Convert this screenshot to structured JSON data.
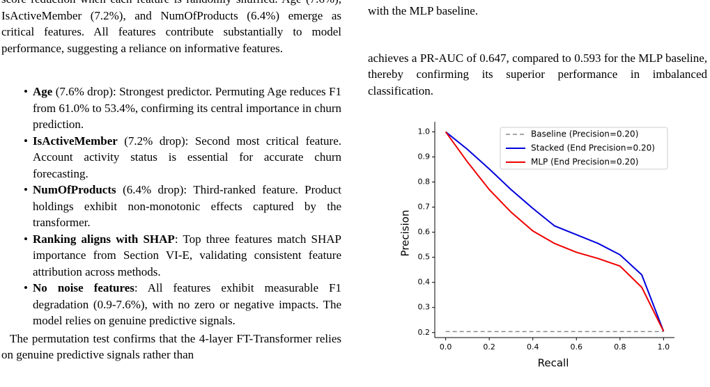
{
  "left_column": {
    "intro": "score reduction when each feature is randomly shuffled. Age (7.6%), IsActiveMember (7.2%), and NumOfProducts (6.4%) emerge as critical features. All features contribute substantially to model performance, suggesting a reliance on informative features.",
    "bullets": [
      {
        "term": "Age",
        "text": "(7.6% drop): Strongest predictor. Permuting Age reduces F1 from 61.0% to 53.4%, confirming its central importance in churn prediction."
      },
      {
        "term": "IsActiveMember",
        "text": "(7.2% drop): Second most critical feature. Account activity status is essential for accurate churn forecasting."
      },
      {
        "term": "NumOfProducts",
        "text": "(6.4% drop): Third-ranked feature. Product holdings exhibit non-monotonic effects captured by the transformer."
      },
      {
        "term": "Ranking aligns with SHAP",
        "text": ": Top three features match SHAP importance from Section VI-E, validating consistent feature attribution across methods."
      },
      {
        "term": "No noise features",
        "text": ": All features exhibit measurable F1 degradation (0.9-7.6%), with no zero or negative impacts. The model relies on genuine predictive signals."
      }
    ],
    "closing": "The permutation test confirms that the 4-layer FT-Transformer relies on genuine predictive signals rather than"
  },
  "right_column": {
    "top_line": "with the MLP baseline.",
    "paragraph": "achieves a PR-AUC of 0.647, compared to 0.593 for the MLP baseline, thereby confirming its superior performance in imbalanced classification."
  },
  "chart_data": {
    "type": "line",
    "x_label": "Recall",
    "y_label": "Precision",
    "x": [
      0,
      0.1,
      0.2,
      0.3,
      0.4,
      0.5,
      0.6,
      0.7,
      0.8,
      0.9,
      1
    ],
    "series": [
      {
        "name": "Baseline (Precision=0.20)",
        "color": "#888888",
        "dashed": true,
        "values": [
          0.204,
          0.204,
          0.204,
          0.204,
          0.204,
          0.204,
          0.204,
          0.204,
          0.204,
          0.204,
          0.204
        ]
      },
      {
        "name": "Stacked (End Precision=0.20)",
        "color": "#0000dd",
        "dashed": false,
        "values": [
          1.0,
          0.93,
          0.852,
          0.77,
          0.695,
          0.625,
          0.59,
          0.555,
          0.51,
          0.43,
          0.205
        ]
      },
      {
        "name": "MLP (End Precision=0.20)",
        "color": "#ee0000",
        "dashed": false,
        "values": [
          1.0,
          0.88,
          0.77,
          0.68,
          0.605,
          0.555,
          0.52,
          0.495,
          0.465,
          0.38,
          0.205
        ]
      }
    ],
    "xlim": [
      -0.05,
      1.05
    ],
    "ylim": [
      0.18,
      1.04
    ],
    "xticks": [
      {
        "value": 0,
        "label": "0.0"
      },
      0.2,
      0.4,
      0.6,
      0.8,
      {
        "value": 1,
        "label": "1.0"
      }
    ],
    "yticks": [
      0.2,
      0.3,
      0.4,
      0.5,
      0.6,
      0.7,
      0.8,
      0.9,
      {
        "value": 1,
        "label": "1.0"
      }
    ],
    "legend": "upper right"
  }
}
